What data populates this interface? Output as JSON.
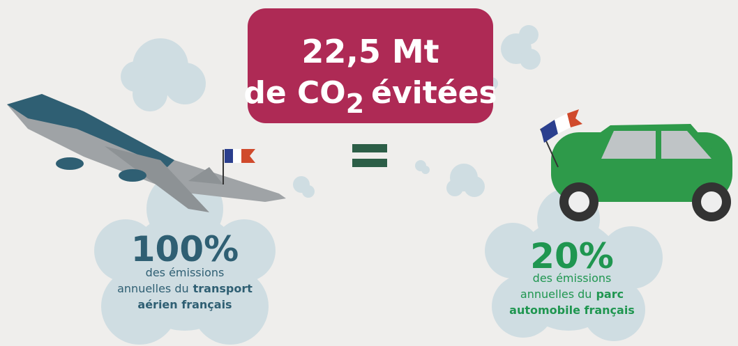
{
  "headline": {
    "line1": "22,5 Mt",
    "line2_prefix": "de CO",
    "subscript": "2",
    "line2_suffix": "évitées"
  },
  "left": {
    "figure": "100%",
    "line1": "des émissions",
    "line2": "annuelles du",
    "line2_bold": "transport",
    "line3": "aérien français"
  },
  "right": {
    "figure": "20%",
    "line1": "des émissions",
    "line2": "annuelles du",
    "line2_bold": "parc",
    "line3": "automobile français"
  }
}
